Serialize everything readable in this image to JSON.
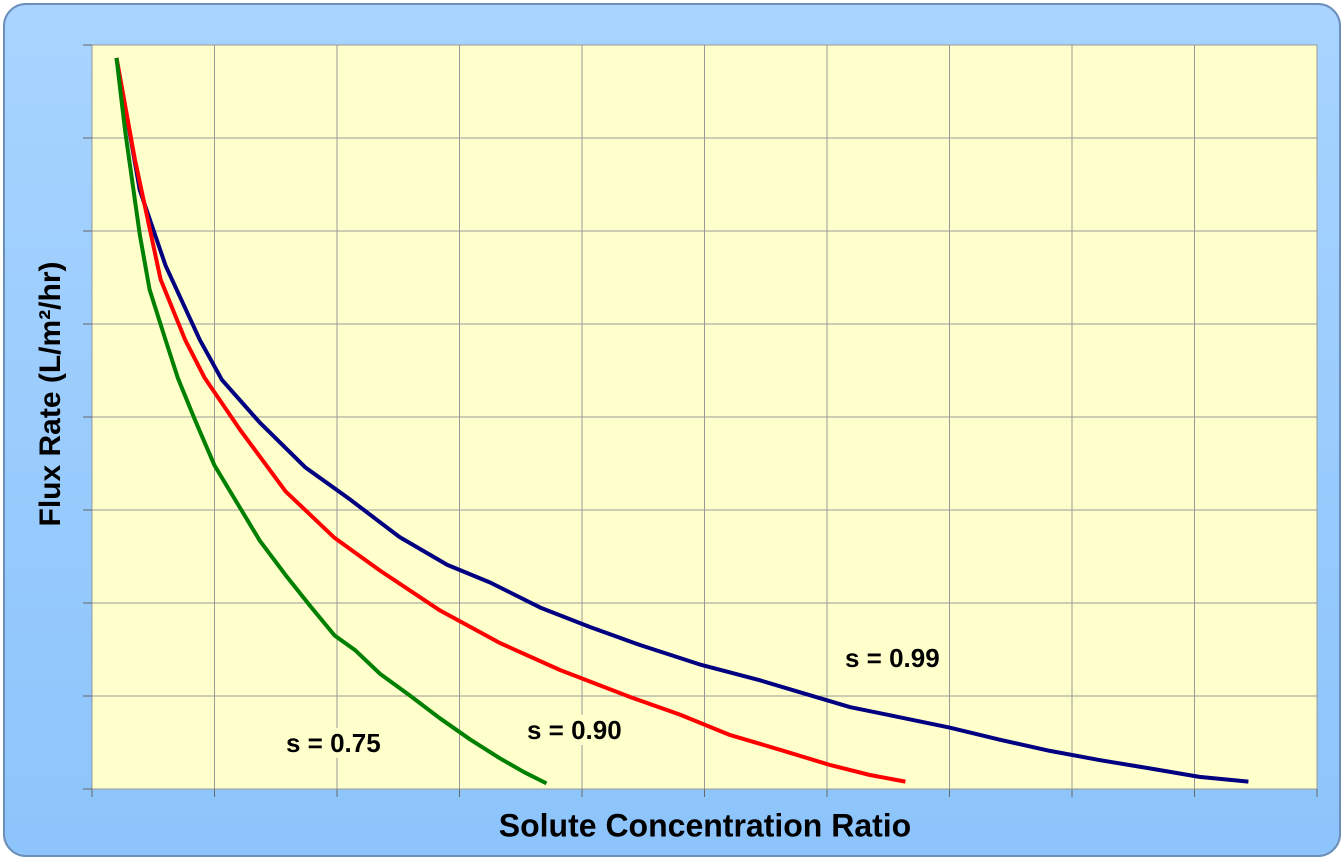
{
  "chart_data": {
    "type": "line",
    "xlabel": "Solute Concentration Ratio",
    "ylabel": "Flux Rate (L/m²/hr)",
    "xlim": [
      0,
      10
    ],
    "ylim": [
      0,
      8
    ],
    "xticks": [
      0,
      1,
      2,
      3,
      4,
      5,
      6,
      7,
      8,
      9,
      10
    ],
    "yticks": [
      0,
      1,
      2,
      3,
      4,
      5,
      6,
      7,
      8
    ],
    "grid": true,
    "series": [
      {
        "name": "s = 0.99",
        "color": "#000080",
        "x": [
          0.2,
          0.39,
          0.6,
          0.88,
          1.06,
          1.37,
          1.74,
          2.11,
          2.51,
          2.9,
          3.25,
          3.66,
          4.07,
          4.47,
          4.96,
          5.45,
          5.78,
          6.19,
          6.6,
          7.0,
          7.41,
          7.82,
          8.23,
          8.64,
          9.04,
          9.44
        ],
        "values": [
          7.86,
          6.44,
          5.63,
          4.83,
          4.4,
          3.94,
          3.46,
          3.11,
          2.71,
          2.41,
          2.22,
          1.95,
          1.74,
          1.55,
          1.34,
          1.17,
          1.04,
          0.88,
          0.77,
          0.66,
          0.53,
          0.41,
          0.31,
          0.22,
          0.13,
          0.08
        ]
      },
      {
        "name": "s = 0.90",
        "color": "#ff0000",
        "x": [
          0.2,
          0.35,
          0.56,
          0.76,
          0.92,
          1.21,
          1.58,
          1.98,
          2.35,
          2.84,
          3.33,
          3.82,
          4.39,
          4.8,
          5.21,
          5.62,
          6.02,
          6.35,
          6.64
        ],
        "values": [
          7.86,
          6.77,
          5.48,
          4.83,
          4.42,
          3.86,
          3.2,
          2.7,
          2.35,
          1.92,
          1.57,
          1.28,
          0.99,
          0.8,
          0.58,
          0.42,
          0.26,
          0.15,
          0.08
        ]
      },
      {
        "name": "s = 0.75",
        "color": "#008000",
        "x": [
          0.2,
          0.27,
          0.39,
          0.47,
          0.6,
          0.7,
          0.84,
          1.0,
          1.21,
          1.37,
          1.58,
          1.78,
          1.98,
          2.15,
          2.35,
          2.6,
          2.84,
          3.09,
          3.33,
          3.53,
          3.71
        ],
        "values": [
          7.86,
          7.08,
          5.96,
          5.37,
          4.83,
          4.42,
          3.97,
          3.48,
          3.02,
          2.67,
          2.3,
          1.97,
          1.65,
          1.49,
          1.24,
          1.0,
          0.76,
          0.53,
          0.33,
          0.18,
          0.06
        ]
      }
    ]
  }
}
